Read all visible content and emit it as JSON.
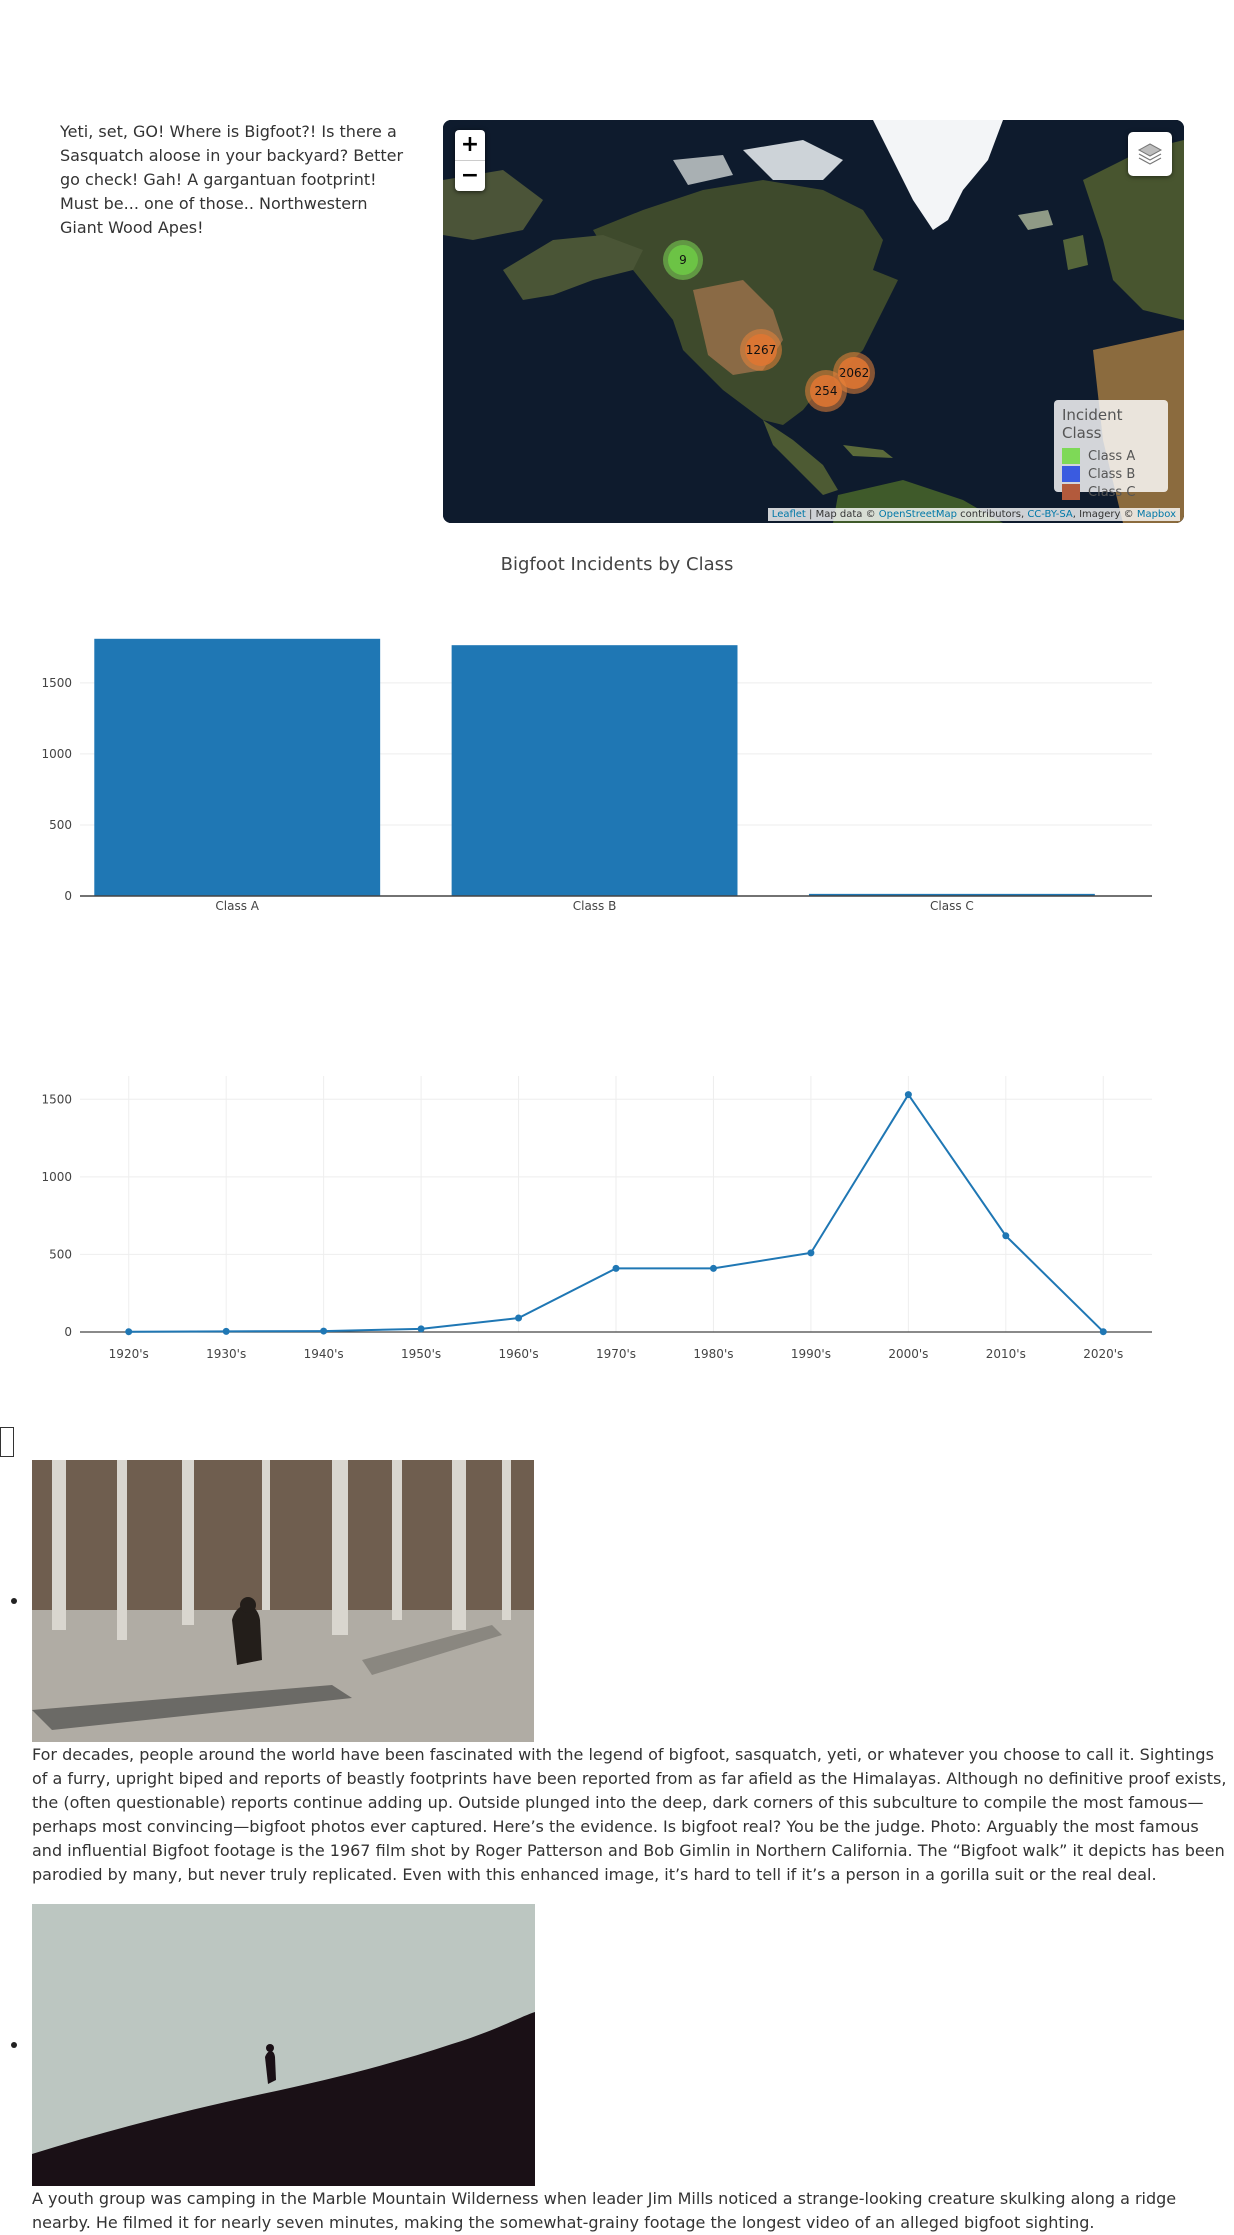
{
  "intro": {
    "text": "Yeti, set, GO! Where is Bigfoot?! Is there a Sasquatch aloose in your backyard? Better go check! Gah! A gargantuan footprint! Must be... one of those.. Northwestern Giant Wood Apes!"
  },
  "map": {
    "zoom_in": "+",
    "zoom_out": "−",
    "layers_icon": "layers-icon",
    "clusters": [
      {
        "label": "9",
        "color": "#7ED957"
      },
      {
        "label": "1267",
        "color": "#E8833A"
      },
      {
        "label": "2062",
        "color": "#E8833A"
      },
      {
        "label": "254",
        "color": "#E8833A"
      }
    ],
    "legend": {
      "title": "Incident Class",
      "items": [
        {
          "label": "Class A",
          "color": "#7ED957"
        },
        {
          "label": "Class B",
          "color": "#3A5BE0"
        },
        {
          "label": "Class C",
          "color": "#B35A3C"
        }
      ]
    },
    "attribution": {
      "leaflet": "Leaflet",
      "sep1": " | Map data © ",
      "osm": "OpenStreetMap",
      "sep2": " contributors, ",
      "license": "CC-BY-SA",
      "sep3": ", Imagery © ",
      "mapbox": "Mapbox"
    }
  },
  "chart_data": [
    {
      "type": "bar",
      "title": "Bigfoot Incidents by Class",
      "categories": [
        "Class A",
        "Class B",
        "Class C"
      ],
      "values": [
        1810,
        1765,
        15
      ],
      "yticks": [
        0,
        500,
        1000,
        1500
      ],
      "ylim": [
        0,
        1900
      ],
      "color": "#1f77b4",
      "grid": true
    },
    {
      "type": "line",
      "title": "",
      "categories": [
        "1920's",
        "1930's",
        "1940's",
        "1950's",
        "1960's",
        "1970's",
        "1980's",
        "1990's",
        "2000's",
        "2010's",
        "2020's"
      ],
      "values": [
        2,
        4,
        6,
        20,
        90,
        410,
        410,
        510,
        1530,
        620,
        2
      ],
      "yticks": [
        0,
        500,
        1000,
        1500
      ],
      "ylim": [
        0,
        1650
      ],
      "color": "#1f77b4",
      "grid": true
    }
  ],
  "gallery": [
    {
      "image": "patterson-gimlin-film-photo",
      "caption": "For decades, people around the world have been fascinated with the legend of bigfoot, sasquatch, yeti, or whatever you choose to call it. Sightings of a furry, upright biped and reports of beastly footprints have been reported from as far afield as the Himalayas. Although no definitive proof exists, the (often questionable) reports continue adding up. Outside plunged into the deep, dark corners of this subculture to compile the most famous—perhaps most convincing—bigfoot photos ever captured. Here’s the evidence. Is bigfoot real? You be the judge. Photo: Arguably the most famous and influential Bigfoot footage is the 1967 film shot by Roger Patterson and Bob Gimlin in Northern California. The “Bigfoot walk” it depicts has been parodied by many, but never truly replicated. Even with this enhanced image, it’s hard to tell if it’s a person in a gorilla suit or the real deal."
    },
    {
      "image": "marble-mountain-ridge-photo",
      "caption": "A youth group was camping in the Marble Mountain Wilderness when leader Jim Mills noticed a strange-looking creature skulking along a ridge nearby. He filmed it for nearly seven minutes, making the somewhat-grainy footage the longest video of an alleged bigfoot sighting."
    }
  ]
}
